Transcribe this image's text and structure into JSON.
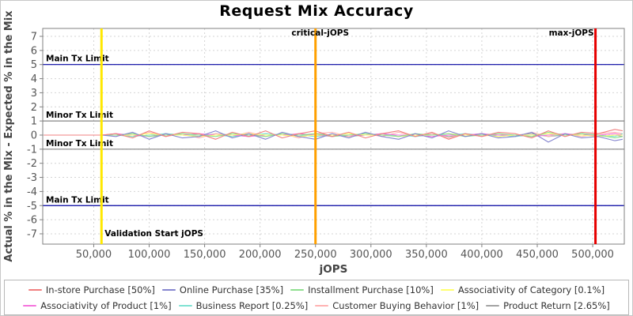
{
  "title": "Request Mix Accuracy",
  "chart_data": {
    "type": "line",
    "title": "Request Mix Accuracy",
    "xlabel": "jOPS",
    "ylabel": "Actual % in the Mix - Expected % in the Mix",
    "xlim": [
      4000,
      528500
    ],
    "ylim": [
      -7.73,
      7.56
    ],
    "grid": true,
    "legend_position": "bottom",
    "legend_rows": [
      4,
      4
    ],
    "xticks": [
      {
        "value": 50000,
        "label": "50,000"
      },
      {
        "value": 100000,
        "label": "100,000"
      },
      {
        "value": 150000,
        "label": "150,000"
      },
      {
        "value": 200000,
        "label": "200,000"
      },
      {
        "value": 250000,
        "label": "250,000"
      },
      {
        "value": 300000,
        "label": "300,000"
      },
      {
        "value": 350000,
        "label": "350,000"
      },
      {
        "value": 400000,
        "label": "400,000"
      },
      {
        "value": 450000,
        "label": "450,000"
      },
      {
        "value": 500000,
        "label": "500,000"
      }
    ],
    "yticks": [
      7,
      6,
      5,
      4,
      3,
      2,
      1,
      0,
      -1,
      -2,
      -3,
      -4,
      -5,
      -6,
      -7
    ],
    "hlines": [
      {
        "y": 5,
        "color": "#0000a0",
        "label": "Main Tx Limit"
      },
      {
        "y": 1,
        "color": "#858585",
        "label": "Minor Tx Limit"
      },
      {
        "y": -1,
        "color": "#858585",
        "label": "Minor Tx Limit"
      },
      {
        "y": -5,
        "color": "#0000a0",
        "label": "Main Tx Limit"
      }
    ],
    "vlines": [
      {
        "x": 57000,
        "color": "#ffe800",
        "label": "Validation Start jOPS",
        "label_pos": "bottom-right"
      },
      {
        "x": 250000,
        "color": "#ffa000",
        "label": "critical-jOPS",
        "label_pos": "top-center"
      },
      {
        "x": 502500,
        "color": "#e60000",
        "label": "max-jOPS",
        "label_pos": "top-left"
      }
    ],
    "x": [
      5000,
      20000,
      35000,
      50000,
      57000,
      70000,
      85000,
      100000,
      115000,
      130000,
      145000,
      160000,
      175000,
      190000,
      205000,
      220000,
      235000,
      250000,
      265000,
      280000,
      295000,
      310000,
      325000,
      340000,
      355000,
      370000,
      385000,
      400000,
      415000,
      430000,
      445000,
      460000,
      475000,
      490000,
      505000,
      520000,
      527000
    ],
    "series": [
      {
        "name": "In-store Purchase [50%]",
        "color": "#f08080",
        "values": [
          0,
          0,
          0,
          0,
          0,
          0.1,
          -0.2,
          0.3,
          -0.1,
          0.2,
          0.1,
          -0.3,
          0.2,
          -0.1,
          0.3,
          -0.2,
          0.1,
          0.3,
          -0.1,
          0.2,
          -0.2,
          0.1,
          0.3,
          -0.1,
          0.2,
          -0.3,
          0.1,
          -0.1,
          0.2,
          0.1,
          -0.2,
          0.3,
          -0.1,
          0.2,
          0.1,
          0.4,
          0.3
        ]
      },
      {
        "name": "Online Purchase [35%]",
        "color": "#8585cf",
        "values": [
          0,
          0,
          0,
          0,
          0,
          -0.1,
          0.2,
          -0.3,
          0.1,
          -0.2,
          -0.1,
          0.3,
          -0.2,
          0.1,
          -0.3,
          0.2,
          -0.1,
          -0.3,
          0.1,
          -0.2,
          0.2,
          -0.1,
          -0.3,
          0.1,
          -0.2,
          0.3,
          -0.1,
          0.1,
          -0.2,
          -0.1,
          0.2,
          -0.5,
          0.1,
          -0.2,
          -0.1,
          -0.4,
          -0.3
        ]
      },
      {
        "name": "Installment Purchase [10%]",
        "color": "#8fdf8f",
        "values": [
          0,
          0,
          0,
          0,
          0,
          0,
          0.1,
          -0.1,
          0,
          0.1,
          0,
          -0.1,
          0.1,
          0,
          -0.1,
          0.1,
          0,
          0.1,
          -0.1,
          0,
          0.1,
          0,
          -0.1,
          0.1,
          0,
          0.1,
          -0.1,
          0,
          0.1,
          0,
          -0.1,
          0.2,
          0,
          0.1,
          0,
          -0.2,
          -0.1
        ]
      },
      {
        "name": "Associativity of Category [0.1%]",
        "color": "#ffff70",
        "values": [
          0,
          0,
          0,
          0,
          0,
          0,
          0,
          0.1,
          0,
          0,
          -0.1,
          0,
          0,
          0.1,
          0,
          0,
          -0.1,
          0,
          0,
          0.1,
          0,
          0,
          -0.1,
          0,
          0,
          0.1,
          0,
          0,
          -0.1,
          0,
          0,
          0.1,
          0,
          0,
          -0.1,
          0,
          0
        ]
      },
      {
        "name": "Associativity of Product [1%]",
        "color": "#f573dd",
        "values": [
          0,
          0,
          0,
          0,
          0,
          0.1,
          0,
          -0.1,
          0,
          0,
          0.1,
          0,
          0,
          -0.1,
          0,
          0,
          0.1,
          0,
          -0.1,
          0,
          0,
          0.1,
          0,
          0,
          -0.1,
          0,
          0,
          0.1,
          0,
          0,
          -0.1,
          0,
          0.1,
          0,
          0,
          0.1,
          0
        ]
      },
      {
        "name": "Business Report [0.25%]",
        "color": "#7fe2d2",
        "values": [
          0,
          0,
          0,
          0,
          0,
          0,
          -0.1,
          0,
          0.1,
          0,
          0,
          0,
          -0.1,
          0,
          0.1,
          0,
          0,
          -0.1,
          0,
          0,
          0.1,
          0,
          0,
          -0.1,
          0,
          0,
          0.1,
          0,
          0,
          -0.1,
          0,
          0,
          0,
          0.1,
          0,
          -0.1,
          0.1
        ]
      },
      {
        "name": "Customer Buying Behavior [1%]",
        "color": "#ffb2b2",
        "values": [
          0,
          0,
          0,
          0,
          0,
          0.1,
          -0.1,
          0.2,
          -0.1,
          0.1,
          -0.2,
          0.1,
          -0.1,
          0.2,
          -0.1,
          0.1,
          -0.2,
          0.1,
          0.2,
          -0.1,
          0.1,
          -0.1,
          0.2,
          -0.1,
          0.1,
          -0.2,
          0.1,
          -0.1,
          0.1,
          -0.1,
          0.2,
          -0.1,
          0.1,
          -0.1,
          0.1,
          0.2,
          0.1
        ]
      },
      {
        "name": "Product Return [2.65%]",
        "color": "#a3a3a3",
        "values": [
          0,
          0,
          0,
          0,
          0,
          0,
          0.1,
          -0.1,
          0.1,
          0,
          -0.1,
          0.1,
          0,
          -0.1,
          0.1,
          0,
          -0.1,
          0.1,
          0,
          -0.1,
          0,
          0.1,
          -0.1,
          0,
          0.1,
          -0.1,
          0,
          0.1,
          -0.1,
          0,
          0.1,
          -0.1,
          0,
          0.1,
          -0.1,
          0,
          -0.1
        ]
      }
    ]
  }
}
